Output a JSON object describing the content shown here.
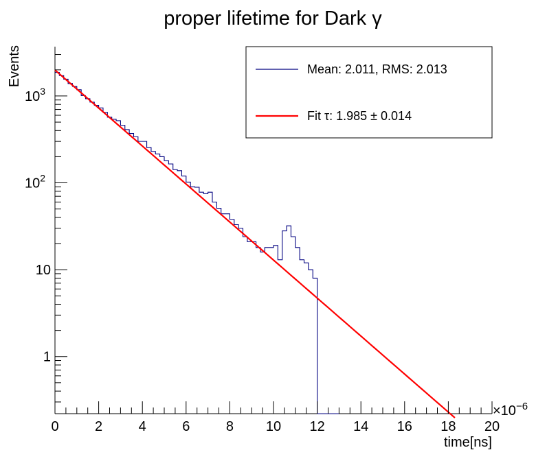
{
  "chart_data": {
    "type": "histogram",
    "title": "proper lifetime for Dark γ",
    "xlabel": "time[ns]",
    "ylabel": "Events",
    "x_exponent_label": "×10",
    "x_exponent_power": "−6",
    "xlim": [
      0,
      20
    ],
    "ylim": [
      0.22,
      3700
    ],
    "yscale": "log",
    "x_tick_labels": [
      "0",
      "2",
      "4",
      "6",
      "8",
      "10",
      "12",
      "14",
      "16",
      "18",
      "20"
    ],
    "y_tick_labels": [
      {
        "value": 1000,
        "base": "10",
        "sup": "3"
      },
      {
        "value": 100,
        "base": "10",
        "sup": "2"
      },
      {
        "value": 10,
        "base": "10",
        "sup": ""
      },
      {
        "value": 1,
        "base": "1",
        "sup": ""
      }
    ],
    "series": [
      {
        "name": "Mean: 2.011, RMS: 2.013",
        "color": "#000080",
        "bin_width": 0.2,
        "bin_start": 0,
        "values": [
          1870,
          1720,
          1560,
          1390,
          1290,
          1180,
          1010,
          930,
          850,
          780,
          730,
          650,
          570,
          540,
          520,
          460,
          410,
          370,
          340,
          300,
          300,
          255,
          230,
          215,
          200,
          180,
          165,
          142,
          138,
          120,
          102,
          90,
          89,
          78,
          75,
          78,
          60,
          51,
          44,
          44,
          38,
          33,
          30,
          24,
          21,
          21,
          18,
          16,
          18,
          18,
          19,
          13,
          28,
          32,
          24,
          18,
          13,
          12,
          10,
          8,
          0,
          0,
          0,
          0,
          0
        ]
      },
      {
        "name": "Fit τ: 1.985 ± 0.014",
        "color": "#ff0000",
        "type": "exponential-fit",
        "amplitude": 1990,
        "tau": 1.985,
        "x_range": [
          0,
          18.3
        ]
      }
    ],
    "legend": {
      "position": "top-right",
      "entries": [
        "Mean: 2.011, RMS: 2.013",
        "Fit τ: 1.985 ± 0.014"
      ]
    }
  }
}
